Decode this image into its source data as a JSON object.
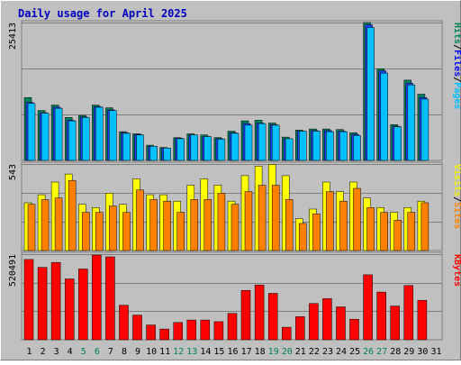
{
  "chart_data": {
    "type": "bar",
    "title": "Daily usage for April 2025",
    "categories": [
      "1",
      "2",
      "3",
      "4",
      "5",
      "6",
      "7",
      "8",
      "9",
      "10",
      "11",
      "12",
      "13",
      "14",
      "15",
      "16",
      "17",
      "18",
      "19",
      "20",
      "21",
      "22",
      "23",
      "24",
      "25",
      "26",
      "27",
      "28",
      "29",
      "30",
      "31"
    ],
    "weekend_days": [
      "5",
      "6",
      "12",
      "13",
      "19",
      "20",
      "26",
      "27"
    ],
    "panels": [
      {
        "id": "top",
        "max_label": "25413",
        "ylim": [
          0,
          25413
        ],
        "legend": [
          {
            "text": "Hits",
            "color": "#00805c"
          },
          {
            "text": "/",
            "color": "#000000"
          },
          {
            "text": "Files",
            "color": "#0000ff"
          },
          {
            "text": "/",
            "color": "#000000"
          },
          {
            "text": "Pages",
            "color": "#00c0ff"
          }
        ],
        "series": [
          {
            "name": "Hits",
            "color": "#00805c",
            "values": [
              11600,
              9200,
              10200,
              7900,
              8300,
              10200,
              9700,
              5300,
              4900,
              2800,
              2400,
              4200,
              4900,
              4700,
              4200,
              5400,
              7300,
              7400,
              6900,
              4300,
              5600,
              5800,
              5800,
              5700,
              5100,
              25413,
              16900,
              6600,
              14800,
              12200,
              0
            ]
          },
          {
            "name": "Files",
            "color": "#2040ff",
            "values": [
              10700,
              8800,
              9800,
              7400,
              8000,
              9900,
              9300,
              5100,
              4800,
              2600,
              2300,
              4100,
              4700,
              4400,
              4000,
              5100,
              6800,
              6900,
              6600,
              4000,
              5400,
              5500,
              5500,
              5400,
              4800,
              25000,
              16500,
              6300,
              14200,
              11600,
              0
            ]
          },
          {
            "name": "Pages",
            "color": "#00c0ff",
            "values": [
              10500,
              8700,
              9600,
              7300,
              7900,
              9800,
              9200,
              5000,
              4700,
              2600,
              2300,
              4000,
              4700,
              4400,
              3900,
              5000,
              6500,
              6800,
              6500,
              4000,
              5400,
              5400,
              5300,
              5300,
              4600,
              24500,
              16100,
              6200,
              13900,
              11300,
              0
            ]
          }
        ]
      },
      {
        "id": "middle",
        "max_label": "543",
        "ylim": [
          0,
          543
        ],
        "legend": [
          {
            "text": "Visits",
            "color": "#f0f000"
          },
          {
            "text": "/",
            "color": "#000000"
          },
          {
            "text": "Sites",
            "color": "#ff8000"
          }
        ],
        "series": [
          {
            "name": "Visits",
            "color": "#ffff00",
            "values": [
              300,
              350,
              430,
              480,
              290,
              270,
              360,
              290,
              450,
              350,
              350,
              310,
              410,
              450,
              410,
              310,
              470,
              530,
              540,
              470,
              200,
              260,
              430,
              370,
              430,
              330,
              270,
              240,
              270,
              310,
              0
            ]
          },
          {
            "name": "Sites",
            "color": "#ff8000",
            "values": [
              290,
              320,
              330,
              440,
              240,
              240,
              280,
              240,
              380,
              320,
              310,
              240,
              320,
              320,
              360,
              290,
              370,
              410,
              410,
              320,
              170,
              230,
              370,
              310,
              390,
              270,
              240,
              190,
              240,
              300,
              0
            ]
          }
        ]
      },
      {
        "id": "bottom",
        "max_label": "520491",
        "ylim": [
          0,
          520491
        ],
        "legend": [
          {
            "text": "KBytes",
            "color": "#ff0000"
          }
        ],
        "series": [
          {
            "name": "KBytes",
            "color": "#ff0000",
            "values": [
              488000,
              440000,
              470000,
              370000,
              430000,
              515000,
              504000,
              210000,
              150000,
              90000,
              65000,
              105000,
              120000,
              120000,
              110000,
              160000,
              300000,
              333000,
              282000,
              76000,
              140000,
              220000,
              250000,
              200000,
              125000,
              395000,
              290000,
              205000,
              330000,
              240000,
              0
            ]
          }
        ]
      }
    ]
  }
}
